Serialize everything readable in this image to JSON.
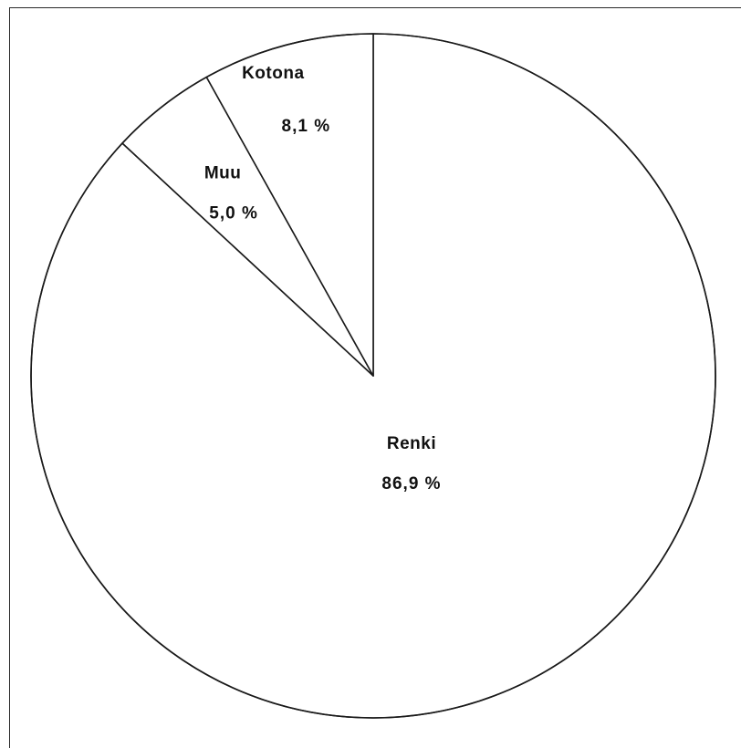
{
  "chart_data": {
    "type": "pie",
    "start_angle_deg": 0,
    "direction": "clockwise",
    "slices": [
      {
        "label": "Renki",
        "value": 86.9,
        "value_label": "86,9 %"
      },
      {
        "label": "Muu",
        "value": 5.0,
        "value_label": "5,0 %"
      },
      {
        "label": "Kotona",
        "value": 8.1,
        "value_label": "8,1 %"
      }
    ]
  }
}
